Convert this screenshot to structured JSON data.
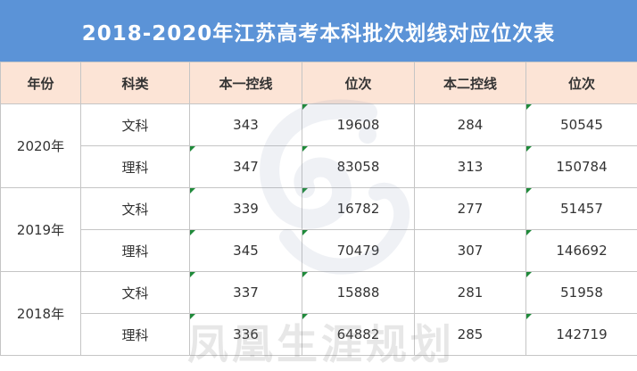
{
  "title": "2018-2020年江苏高考本科批次划线对应位次表",
  "headers": [
    "年份",
    "科类",
    "本一控线",
    "位次",
    "本二控线",
    "位次"
  ],
  "years": [
    {
      "year": "2020年",
      "rows": [
        {
          "category": "文科",
          "line1": "343",
          "rank1": "19608",
          "line2": "284",
          "rank2": "50545"
        },
        {
          "category": "理科",
          "line1": "347",
          "rank1": "83058",
          "line2": "313",
          "rank2": "150784"
        }
      ]
    },
    {
      "year": "2019年",
      "rows": [
        {
          "category": "文科",
          "line1": "339",
          "rank1": "16782",
          "line2": "277",
          "rank2": "51457"
        },
        {
          "category": "理科",
          "line1": "345",
          "rank1": "70479",
          "line2": "307",
          "rank2": "146692"
        }
      ]
    },
    {
      "year": "2018年",
      "rows": [
        {
          "category": "文科",
          "line1": "337",
          "rank1": "15888",
          "line2": "281",
          "rank2": "51958"
        },
        {
          "category": "理科",
          "line1": "336",
          "rank1": "64882",
          "line2": "285",
          "rank2": "142719"
        }
      ]
    }
  ],
  "watermark": {
    "text": "凤凰生涯规划",
    "logo_icon": "phoenix-logo-icon"
  },
  "colors": {
    "title_bg": "#5b93d7",
    "header_bg": "#fce4d6",
    "cell_marker": "#1f8a3a"
  }
}
